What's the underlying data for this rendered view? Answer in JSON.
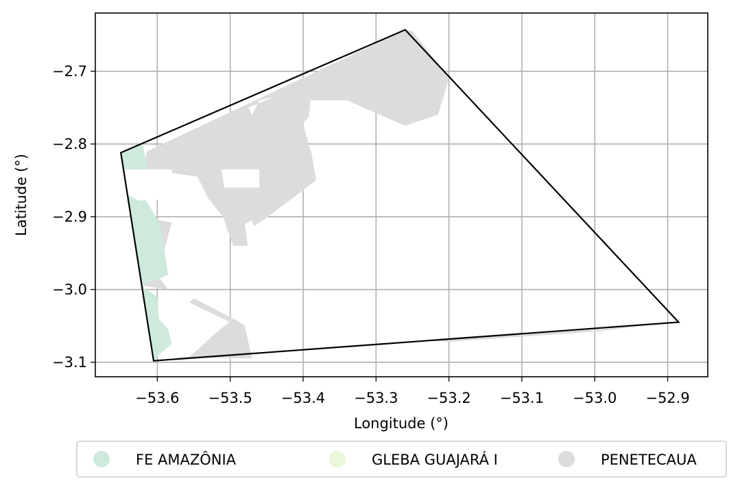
{
  "chart_data": {
    "type": "map",
    "xlabel": "Longitude (°)",
    "ylabel": "Latitude (°)",
    "xlim": [
      -53.685,
      -52.845
    ],
    "ylim": [
      -3.12,
      -2.62
    ],
    "x_ticks": [
      -53.6,
      -53.5,
      -53.4,
      -53.3,
      -53.2,
      -53.1,
      -53.0,
      -52.9
    ],
    "y_ticks": [
      -2.7,
      -2.8,
      -2.9,
      -3.0,
      -3.1
    ],
    "x_tick_labels": [
      "−53.6",
      "−53.5",
      "−53.4",
      "−53.3",
      "−53.2",
      "−53.1",
      "−53.0",
      "−52.9"
    ],
    "y_tick_labels": [
      "−2.7",
      "−2.8",
      "−2.9",
      "−3.0",
      "−3.1"
    ],
    "grid": true,
    "legend_position": "bottom",
    "legend": [
      {
        "label": "FE AMAZÔNIA",
        "color": "#cdeadc"
      },
      {
        "label": "GLEBA GUAJARÁ I",
        "color": "#eaf7d8"
      },
      {
        "label": "PENETECAUA",
        "color": "#dcdcdc"
      }
    ],
    "boundary": [
      [
        -53.65,
        -2.812
      ],
      [
        -53.26,
        -2.643
      ],
      [
        -52.885,
        -3.045
      ],
      [
        -53.605,
        -3.098
      ]
    ],
    "regions": [
      {
        "category": "PENETECAUA",
        "color": "#dcdcdc",
        "coords": [
          [
            -53.614,
            -2.81
          ],
          [
            -53.26,
            -2.643
          ],
          [
            -53.25,
            -2.645
          ],
          [
            -53.2,
            -2.71
          ],
          [
            -53.215,
            -2.76
          ],
          [
            -53.26,
            -2.775
          ],
          [
            -53.34,
            -2.74
          ],
          [
            -53.39,
            -2.74
          ],
          [
            -53.392,
            -2.762
          ],
          [
            -53.4,
            -2.772
          ],
          [
            -53.388,
            -2.815
          ],
          [
            -53.382,
            -2.85
          ],
          [
            -53.455,
            -2.905
          ],
          [
            -53.468,
            -2.913
          ],
          [
            -53.47,
            -2.905
          ],
          [
            -53.48,
            -2.91
          ],
          [
            -53.476,
            -2.94
          ],
          [
            -53.496,
            -2.94
          ],
          [
            -53.51,
            -2.9
          ],
          [
            -53.53,
            -2.875
          ],
          [
            -53.545,
            -2.845
          ],
          [
            -53.58,
            -2.84
          ],
          [
            -53.585,
            -2.86
          ],
          [
            -53.62,
            -2.87
          ],
          [
            -53.62,
            -2.9
          ],
          [
            -53.58,
            -2.908
          ],
          [
            -53.6,
            -2.98
          ],
          [
            -53.585,
            -3.0
          ],
          [
            -53.618,
            -2.995
          ],
          [
            -53.62,
            -2.875
          ],
          [
            -53.625,
            -2.855
          ]
        ]
      },
      {
        "category": "PENETECAUA",
        "color": "#dcdcdc",
        "coords": [
          [
            -53.585,
            -3.093
          ],
          [
            -53.555,
            -3.092
          ],
          [
            -53.52,
            -3.06
          ],
          [
            -53.495,
            -3.04
          ],
          [
            -53.48,
            -3.05
          ],
          [
            -53.47,
            -3.095
          ]
        ]
      },
      {
        "category": "PENETECAUA",
        "color": "#dcdcdc",
        "coords": [
          [
            -53.55,
            -3.012
          ],
          [
            -53.496,
            -3.04
          ],
          [
            -53.5,
            -3.045
          ],
          [
            -53.556,
            -3.018
          ]
        ]
      },
      {
        "category": "PENETECAUA",
        "color": "#dcdcdc",
        "coords": [
          [
            -53.24,
            -3.07
          ],
          [
            -53.19,
            -3.066
          ],
          [
            -53.1,
            -3.06
          ],
          [
            -53.0,
            -3.055
          ],
          [
            -52.93,
            -3.05
          ],
          [
            -53.0,
            -3.058
          ],
          [
            -53.2,
            -3.072
          ]
        ]
      },
      {
        "category": "FE AMAZÔNIA",
        "color": "#cdeadc",
        "coords": [
          [
            -53.65,
            -2.812
          ],
          [
            -53.62,
            -2.8
          ],
          [
            -53.612,
            -2.84
          ],
          [
            -53.62,
            -2.87
          ],
          [
            -53.596,
            -2.91
          ],
          [
            -53.585,
            -2.98
          ],
          [
            -53.598,
            -2.985
          ],
          [
            -53.62,
            -2.995
          ],
          [
            -53.615,
            -3.0
          ],
          [
            -53.6,
            -3.01
          ],
          [
            -53.598,
            -3.04
          ],
          [
            -53.585,
            -3.055
          ],
          [
            -53.58,
            -3.075
          ],
          [
            -53.598,
            -3.09
          ],
          [
            -53.605,
            -3.098
          ]
        ]
      }
    ],
    "holes": [
      {
        "coords": [
          [
            -53.512,
            -2.835
          ],
          [
            -53.46,
            -2.835
          ],
          [
            -53.46,
            -2.86
          ],
          [
            -53.508,
            -2.86
          ]
        ]
      },
      {
        "coords": [
          [
            -53.475,
            -2.75
          ],
          [
            -53.44,
            -2.735
          ],
          [
            -53.46,
            -2.74
          ],
          [
            -53.47,
            -2.76
          ]
        ]
      },
      {
        "coords": [
          [
            -53.652,
            -2.835
          ],
          [
            -53.58,
            -2.835
          ],
          [
            -53.575,
            -2.875
          ],
          [
            -53.625,
            -2.878
          ],
          [
            -53.64,
            -2.87
          ]
        ]
      }
    ]
  }
}
